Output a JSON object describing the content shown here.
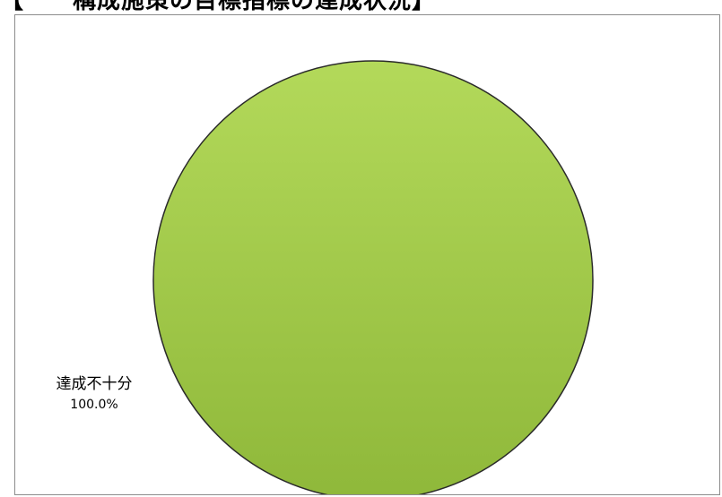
{
  "title": "【　　構成施策の目標指標の達成状況】",
  "chart_data": {
    "type": "pie",
    "slices": [
      {
        "label": "達成不十分",
        "value": 100.0,
        "percent_label": "100.0%",
        "color": "#9cc43f"
      }
    ],
    "legend": "none",
    "colors": {
      "slice_light": "#b3d95a",
      "slice_dark": "#8fb83a",
      "outline": "#2a2a2a"
    }
  }
}
